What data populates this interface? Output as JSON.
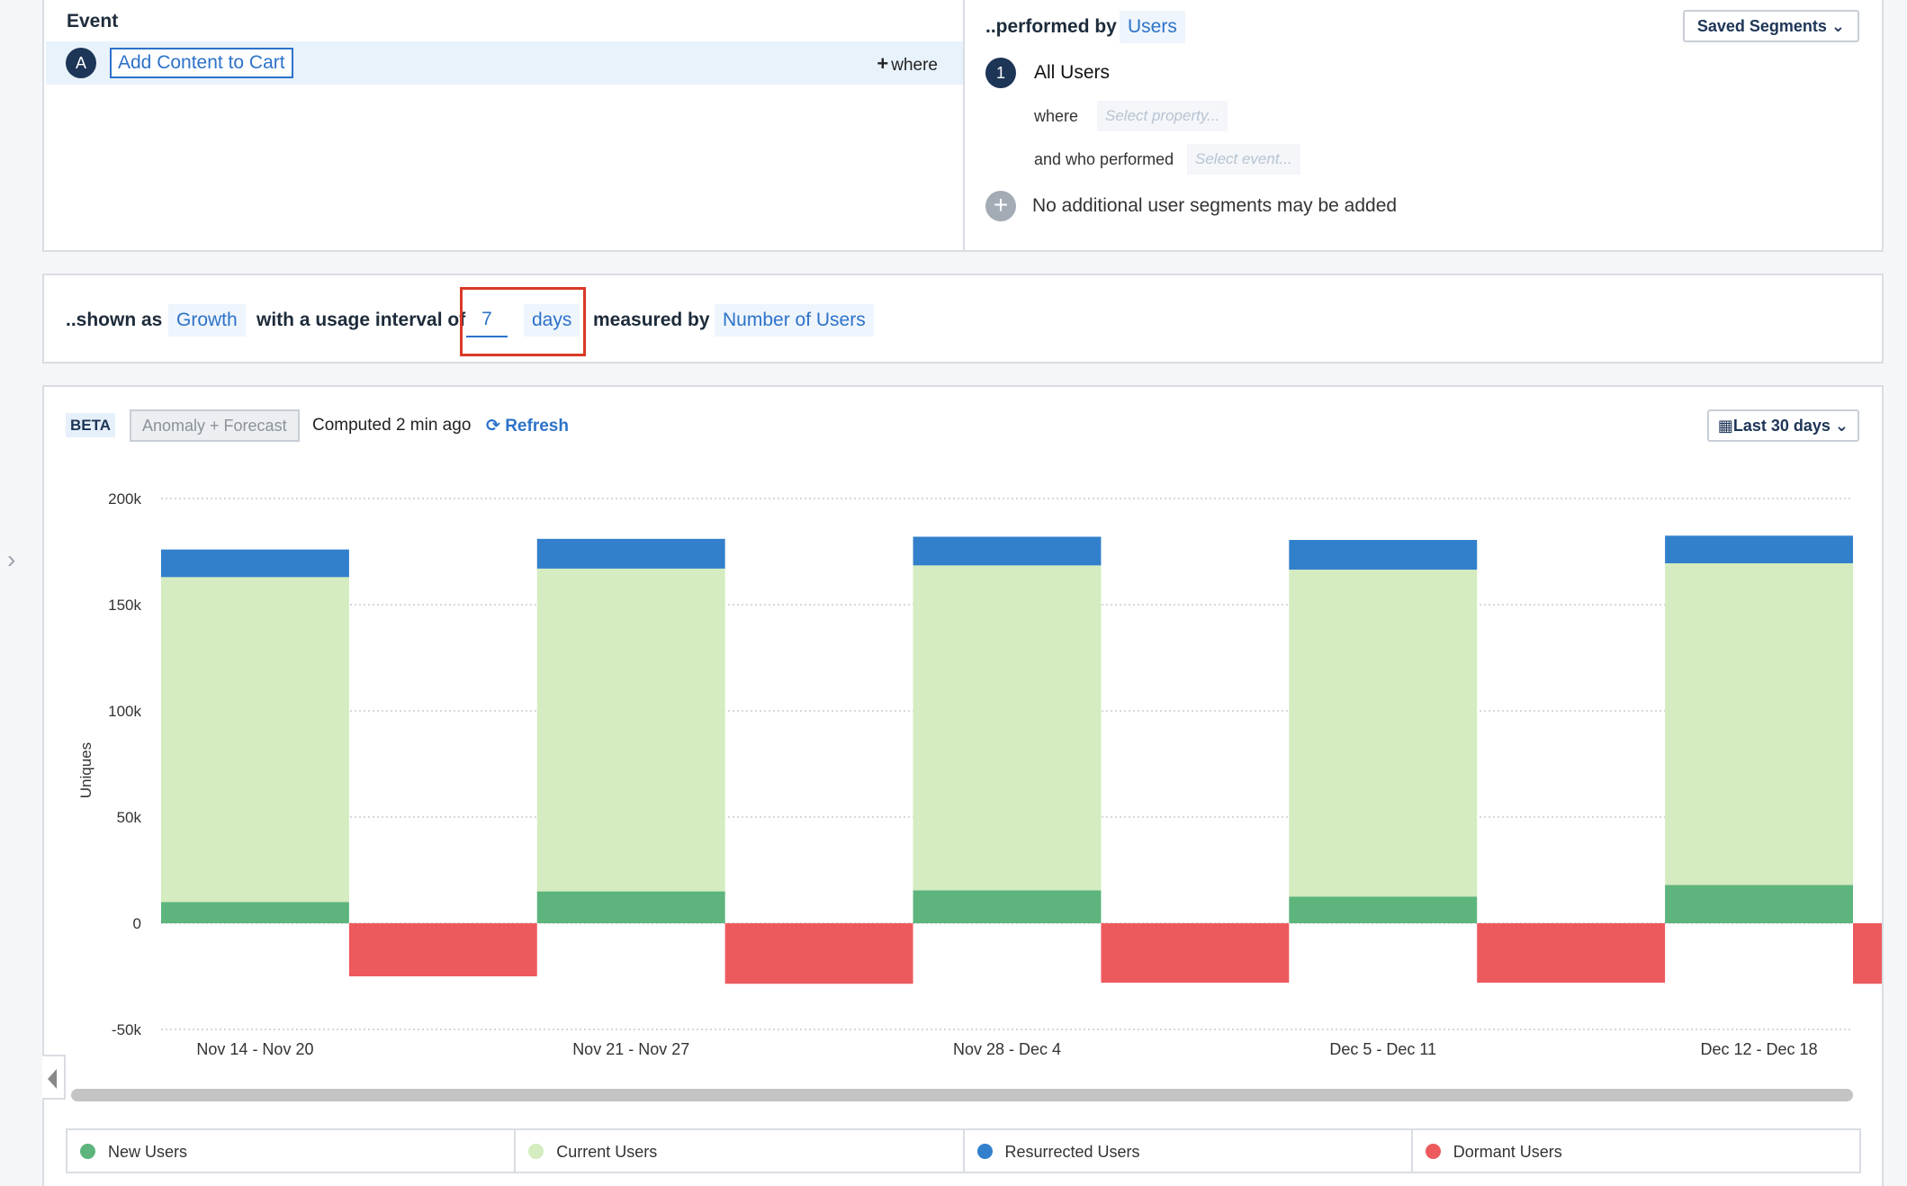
{
  "event_panel": {
    "title": "Event",
    "badge": "A",
    "event_name": "Add Content to Cart",
    "where_label": "where"
  },
  "segment_panel": {
    "title": "..performed by",
    "entity": "Users",
    "saved_segments_label": "Saved Segments",
    "segment_number": "1",
    "segment_name": "All Users",
    "where_label": "where",
    "property_placeholder": "Select property...",
    "performed_label": "and who performed",
    "event_placeholder": "Select event...",
    "no_more_note": "No additional user segments may be added"
  },
  "settings": {
    "shown_as_label": "..shown as",
    "shown_as_value": "Growth",
    "interval_label": "with a usage interval of",
    "interval_value": "7",
    "interval_unit": "days",
    "measured_label": "measured by",
    "measured_value": "Number of Users"
  },
  "chart_toolbar": {
    "beta": "BETA",
    "anomaly": "Anomaly + Forecast",
    "computed": "Computed 2 min ago",
    "refresh": "Refresh",
    "date_range": "Last 30 days"
  },
  "colors": {
    "new": "#5db57d",
    "current": "#d4ecbf",
    "resurrected": "#3280cc",
    "dormant": "#ed5a5e",
    "accent": "#2d72c9",
    "highlight": "#d93a26"
  },
  "chart_data": {
    "type": "bar",
    "stacked": true,
    "ylabel": "Uniques",
    "ylim": [
      -50000,
      200000
    ],
    "yticks": [
      200000,
      150000,
      100000,
      50000,
      0,
      -50000
    ],
    "ytick_labels": [
      "200k",
      "150k",
      "100k",
      "50k",
      "0",
      "-50k"
    ],
    "grid": true,
    "categories": [
      "Nov 14 - Nov 20",
      "Nov 21 - Nov 27",
      "Nov 28 - Dec 4",
      "Dec 5 - Dec 11",
      "Dec 12 - Dec 18"
    ],
    "series": [
      {
        "name": "New Users",
        "key": "new",
        "values": [
          10000,
          15000,
          15500,
          12500,
          18000
        ]
      },
      {
        "name": "Current Users",
        "key": "current",
        "values": [
          153000,
          152000,
          153000,
          154000,
          151500
        ]
      },
      {
        "name": "Resurrected Users",
        "key": "resurrected",
        "values": [
          13000,
          14000,
          13500,
          14000,
          13000
        ]
      },
      {
        "name": "Dormant Users",
        "key": "dormant",
        "values": [
          -25000,
          -28500,
          -28000,
          -28000,
          -28500
        ]
      }
    ]
  },
  "legend": [
    {
      "label": "New Users",
      "key": "new"
    },
    {
      "label": "Current Users",
      "key": "current"
    },
    {
      "label": "Resurrected Users",
      "key": "resurrected"
    },
    {
      "label": "Dormant Users",
      "key": "dormant"
    }
  ]
}
